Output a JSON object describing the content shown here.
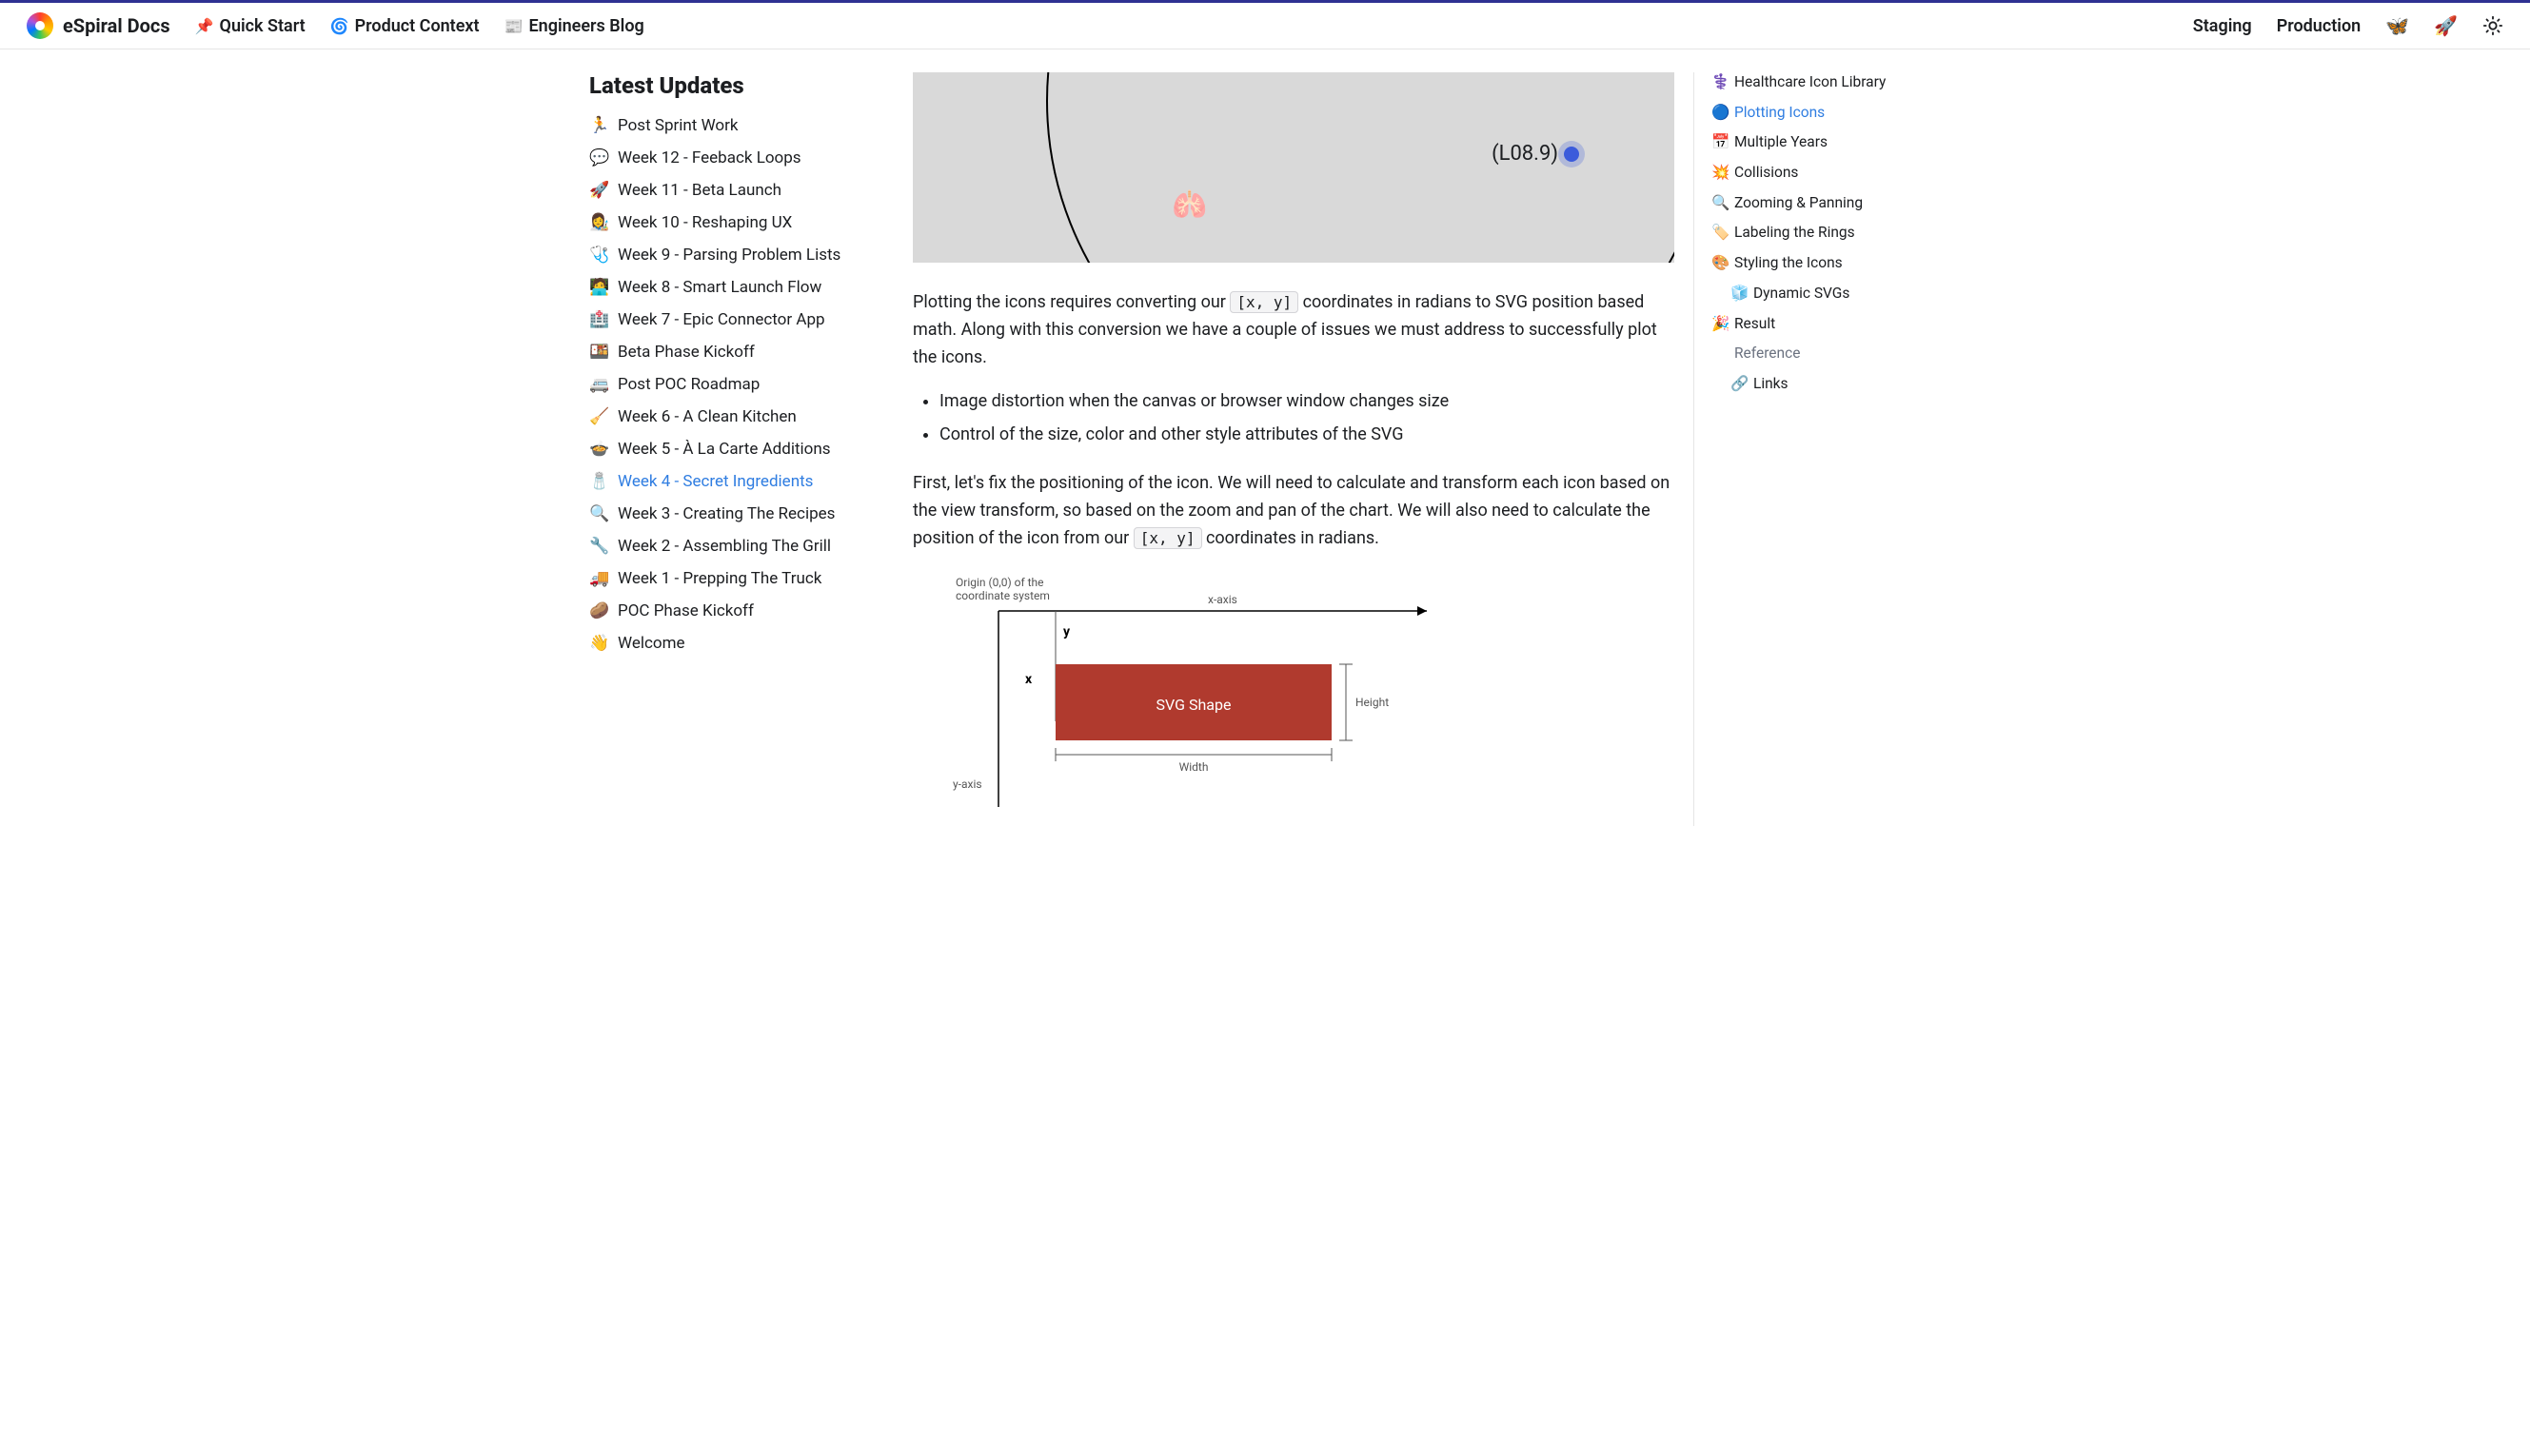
{
  "header": {
    "brand": "eSpiral Docs",
    "nav": [
      {
        "icon": "📌",
        "label": "Quick Start"
      },
      {
        "icon": "🌀",
        "label": "Product Context"
      },
      {
        "icon": "📰",
        "label": "Engineers Blog"
      }
    ],
    "right_links": [
      {
        "label": "Staging"
      },
      {
        "label": "Production"
      }
    ],
    "icons": [
      {
        "name": "butterfly-icon",
        "glyph": "🦋"
      },
      {
        "name": "rocket-icon",
        "glyph": "🚀"
      },
      {
        "name": "theme-toggle-icon",
        "glyph": "sun"
      }
    ]
  },
  "sidebar": {
    "title": "Latest Updates",
    "items": [
      {
        "icon": "🏃",
        "label": "Post Sprint Work"
      },
      {
        "icon": "💬",
        "label": "Week 12 - Feeback Loops"
      },
      {
        "icon": "🚀",
        "label": "Week 11 - Beta Launch"
      },
      {
        "icon": "👩‍🎨",
        "label": "Week 10 - Reshaping UX"
      },
      {
        "icon": "🩺",
        "label": "Week 9 - Parsing Problem Lists"
      },
      {
        "icon": "🧑‍💻",
        "label": "Week 8 - Smart Launch Flow"
      },
      {
        "icon": "🏥",
        "label": "Week 7 - Epic Connector App"
      },
      {
        "icon": "🍱",
        "label": "Beta Phase Kickoff"
      },
      {
        "icon": "🚐",
        "label": "Post POC Roadmap"
      },
      {
        "icon": "🧹",
        "label": "Week 6 - A Clean Kitchen"
      },
      {
        "icon": "🍲",
        "label": "Week 5 - À La Carte Additions"
      },
      {
        "icon": "🧂",
        "label": "Week 4 - Secret Ingredients",
        "active": true
      },
      {
        "icon": "🔍",
        "label": "Week 3 - Creating The Recipes"
      },
      {
        "icon": "🔧",
        "label": "Week 2 - Assembling The Grill"
      },
      {
        "icon": "🚚",
        "label": "Week 1 - Prepping The Truck"
      },
      {
        "icon": "🥔",
        "label": "POC Phase Kickoff"
      },
      {
        "icon": "👋",
        "label": "Welcome"
      }
    ]
  },
  "article": {
    "hero": {
      "point_label": "(L08.9)",
      "lungs_glyph": "🫁",
      "background_color": "#d9d9d9",
      "arc_color": "#000000",
      "dot_color": "#3b5bdb"
    },
    "p1_a": "Plotting the icons requires converting our ",
    "p1_code": "[x, y]",
    "p1_b": " coordinates in radians to SVG position based math. Along with this conversion we have a couple of issues we must address to successfully plot the icons.",
    "bullets": [
      "Image distortion when the canvas or browser window changes size",
      "Control of the size, color and other style attributes of the SVG"
    ],
    "p2_a": "First, let's fix the positioning of the icon. We will need to calculate and transform each icon based on the view transform, so based on the zoom and pan of the chart. We will also need to calculate the position of the icon from our ",
    "p2_code": "[x, y]",
    "p2_b": " coordinates in radians.",
    "diagram": {
      "origin_label_1": "Origin (0,0) of the",
      "origin_label_2": "coordinate system",
      "xaxis_label": "x-axis",
      "yaxis_label": "y-axis",
      "x_label": "x",
      "y_label": "y",
      "shape_label": "SVG Shape",
      "width_label": "Width",
      "height_label": "Height",
      "shape_fill": "#b03a2e",
      "axis_color": "#000000",
      "guide_color": "#555555",
      "label_color": "#555555"
    }
  },
  "toc": {
    "items": [
      {
        "icon": "⚕️",
        "label": "Healthcare Icon Library"
      },
      {
        "icon": "🔵",
        "label": "Plotting Icons",
        "active": true
      },
      {
        "icon": "📅",
        "label": "Multiple Years"
      },
      {
        "icon": "💥",
        "label": "Collisions"
      },
      {
        "icon": "🔍",
        "label": "Zooming & Panning"
      },
      {
        "icon": "🏷️",
        "label": "Labeling the Rings"
      },
      {
        "icon": "🎨",
        "label": "Styling the Icons"
      },
      {
        "icon": "🧊",
        "label": "Dynamic SVGs",
        "sub": true
      },
      {
        "icon": "🎉",
        "label": "Result"
      },
      {
        "icon": "",
        "label": "Reference",
        "muted": true
      },
      {
        "icon": "🔗",
        "label": "Links",
        "sub": true
      }
    ]
  }
}
